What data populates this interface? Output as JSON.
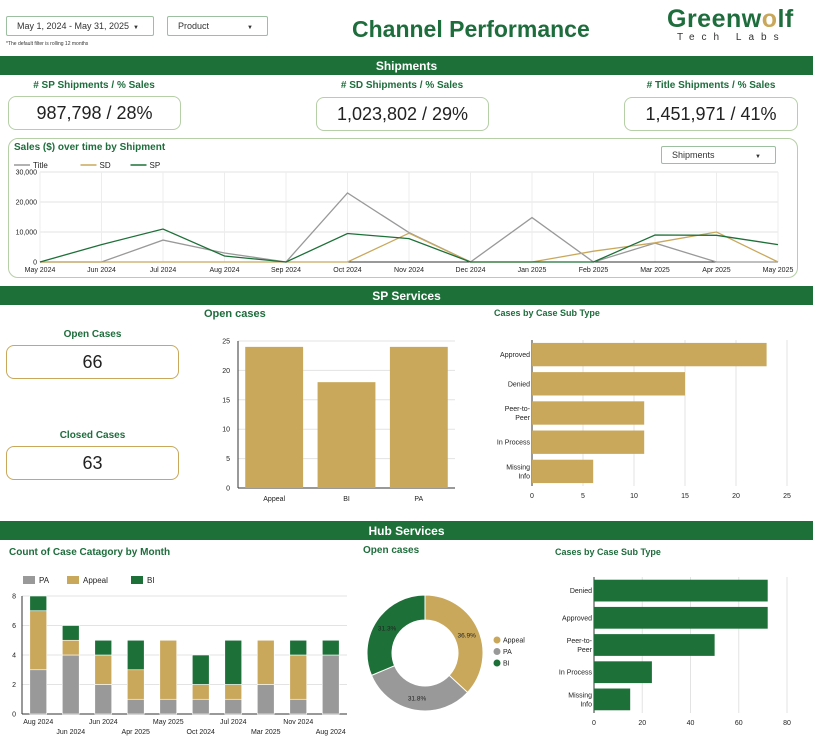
{
  "header": {
    "date_filter": "May 1, 2024 - May 31, 2025",
    "product_filter": "Product",
    "note": "*The default filter is rolling 12 months",
    "title": "Channel Performance",
    "logo_pre": "Greenw",
    "logo_o": "o",
    "logo_post": "lf",
    "logo_sub": "Tech Labs"
  },
  "sections": {
    "shipments": "Shipments",
    "sp_services": "SP Services",
    "hub_services": "Hub Services"
  },
  "kpis": {
    "sp_shipments": {
      "label": "# SP Shipments / % Sales",
      "value": "987,798 / 28%"
    },
    "sd_shipments": {
      "label": "# SD Shipments / % Sales",
      "value": "1,023,802 / 29%"
    },
    "title_shipments": {
      "label": "# Title Shipments / % Sales",
      "value": "1,451,971 / 41%"
    },
    "open_cases": {
      "label": "Open Cases",
      "value": "66"
    },
    "closed_cases": {
      "label": "Closed Cases",
      "value": "63"
    }
  },
  "colors": {
    "green": "#1d7038",
    "gold": "#c9a85c",
    "gray": "#999999"
  },
  "chart_data": [
    {
      "id": "sales_over_time",
      "type": "line",
      "title": "Sales ($) over time by Shipment",
      "dropdown": "Shipments",
      "x": [
        "May 2024",
        "Jun 2024",
        "Jul 2024",
        "Aug 2024",
        "Sep 2024",
        "Oct 2024",
        "Nov 2024",
        "Dec 2024",
        "Jan 2025",
        "Feb 2025",
        "Mar 2025",
        "Apr 2025",
        "May 2025"
      ],
      "ylim": [
        0,
        30000
      ],
      "yticks": [
        "0",
        "10,000",
        "20,000",
        "30,000"
      ],
      "legend_position": "top-left",
      "series": [
        {
          "name": "Title",
          "color": "#999999",
          "values": [
            0,
            0,
            7300,
            3000,
            0,
            23000,
            9800,
            0,
            14800,
            0,
            6300,
            0,
            0
          ]
        },
        {
          "name": "SD",
          "color": "#c9a85c",
          "values": [
            0,
            0,
            0,
            0,
            0,
            0,
            9600,
            0,
            0,
            3600,
            6400,
            10000,
            0
          ]
        },
        {
          "name": "SP",
          "color": "#1d7038",
          "values": [
            0,
            5800,
            11000,
            2000,
            0,
            9500,
            7800,
            0,
            0,
            0,
            9000,
            8900,
            5800
          ]
        }
      ]
    },
    {
      "id": "sp_open_cases",
      "type": "bar",
      "title": "Open cases",
      "categories": [
        "Appeal",
        "BI",
        "PA"
      ],
      "values": [
        24,
        18,
        24
      ],
      "ylim": [
        0,
        25
      ],
      "yticks": [
        "0",
        "5",
        "10",
        "15",
        "20",
        "25"
      ],
      "color": "#c9a85c"
    },
    {
      "id": "sp_cases_sub_type",
      "type": "bar",
      "orientation": "horizontal",
      "title": "Cases by Case Sub Type",
      "categories": [
        "Approved",
        "Denied",
        "Peer-to-Peer",
        "In Process",
        "Missing Info"
      ],
      "category_lines": [
        [
          "Approved"
        ],
        [
          "Denied"
        ],
        [
          "Peer-to-",
          "Peer"
        ],
        [
          "In Process"
        ],
        [
          "Missing",
          "Info"
        ]
      ],
      "values": [
        23,
        15,
        11,
        11,
        6
      ],
      "xlim": [
        0,
        25
      ],
      "xticks": [
        "0",
        "5",
        "10",
        "15",
        "20",
        "25"
      ],
      "color": "#c9a85c"
    },
    {
      "id": "hub_case_category_month",
      "type": "bar",
      "stacked": true,
      "title": "Count of Case Catagory by Month",
      "categories": [
        "Aug 2024",
        "Jun 2024",
        "Jun 2024",
        "Apr 2025",
        "May 2025",
        "Oct 2024",
        "Jul 2024",
        "Mar 2025",
        "Nov 2024",
        "Aug 2024"
      ],
      "tick_labels_top": [
        "Aug 2024",
        "",
        "Jun 2024",
        "",
        "May 2025",
        "",
        "Jul 2024",
        "",
        "Nov 2024",
        ""
      ],
      "tick_labels_bottom": [
        "",
        "Jun 2024",
        "",
        "Apr 2025",
        "",
        "Oct 2024",
        "",
        "Mar 2025",
        "",
        "Aug 2024"
      ],
      "ylim": [
        0,
        8
      ],
      "yticks": [
        "0",
        "2",
        "4",
        "6",
        "8"
      ],
      "legend_position": "top-left",
      "series": [
        {
          "name": "PA",
          "color": "#999999",
          "values": [
            3,
            4,
            2,
            1,
            1,
            1,
            1,
            2,
            1,
            4
          ]
        },
        {
          "name": "Appeal",
          "color": "#c9a85c",
          "values": [
            4,
            1,
            2,
            2,
            4,
            1,
            1,
            3,
            3,
            0
          ]
        },
        {
          "name": "BI",
          "color": "#1d7038",
          "values": [
            1,
            1,
            1,
            2,
            0,
            2,
            3,
            0,
            1,
            1
          ]
        }
      ]
    },
    {
      "id": "hub_open_cases",
      "type": "pie",
      "donut": true,
      "title": "Open cases",
      "legend_position": "right",
      "slices": [
        {
          "name": "Appeal",
          "value": 36.9,
          "label": "36.9%",
          "color": "#c9a85c"
        },
        {
          "name": "PA",
          "value": 31.8,
          "label": "31.8%",
          "color": "#999999"
        },
        {
          "name": "BI",
          "value": 31.3,
          "label": "31.3%",
          "color": "#1d7038"
        }
      ]
    },
    {
      "id": "hub_cases_sub_type",
      "type": "bar",
      "orientation": "horizontal",
      "title": "Cases by Case Sub Type",
      "categories": [
        "Denied",
        "Approved",
        "Peer-to-Peer",
        "In Process",
        "Missing Info"
      ],
      "category_lines": [
        [
          "Denied"
        ],
        [
          "Approved"
        ],
        [
          "Peer-to-",
          "Peer"
        ],
        [
          "In Process"
        ],
        [
          "Missing",
          "Info"
        ]
      ],
      "values": [
        72,
        72,
        50,
        24,
        15
      ],
      "xlim": [
        0,
        80
      ],
      "xticks": [
        "0",
        "20",
        "40",
        "60",
        "80"
      ],
      "color": "#1d7038"
    }
  ]
}
